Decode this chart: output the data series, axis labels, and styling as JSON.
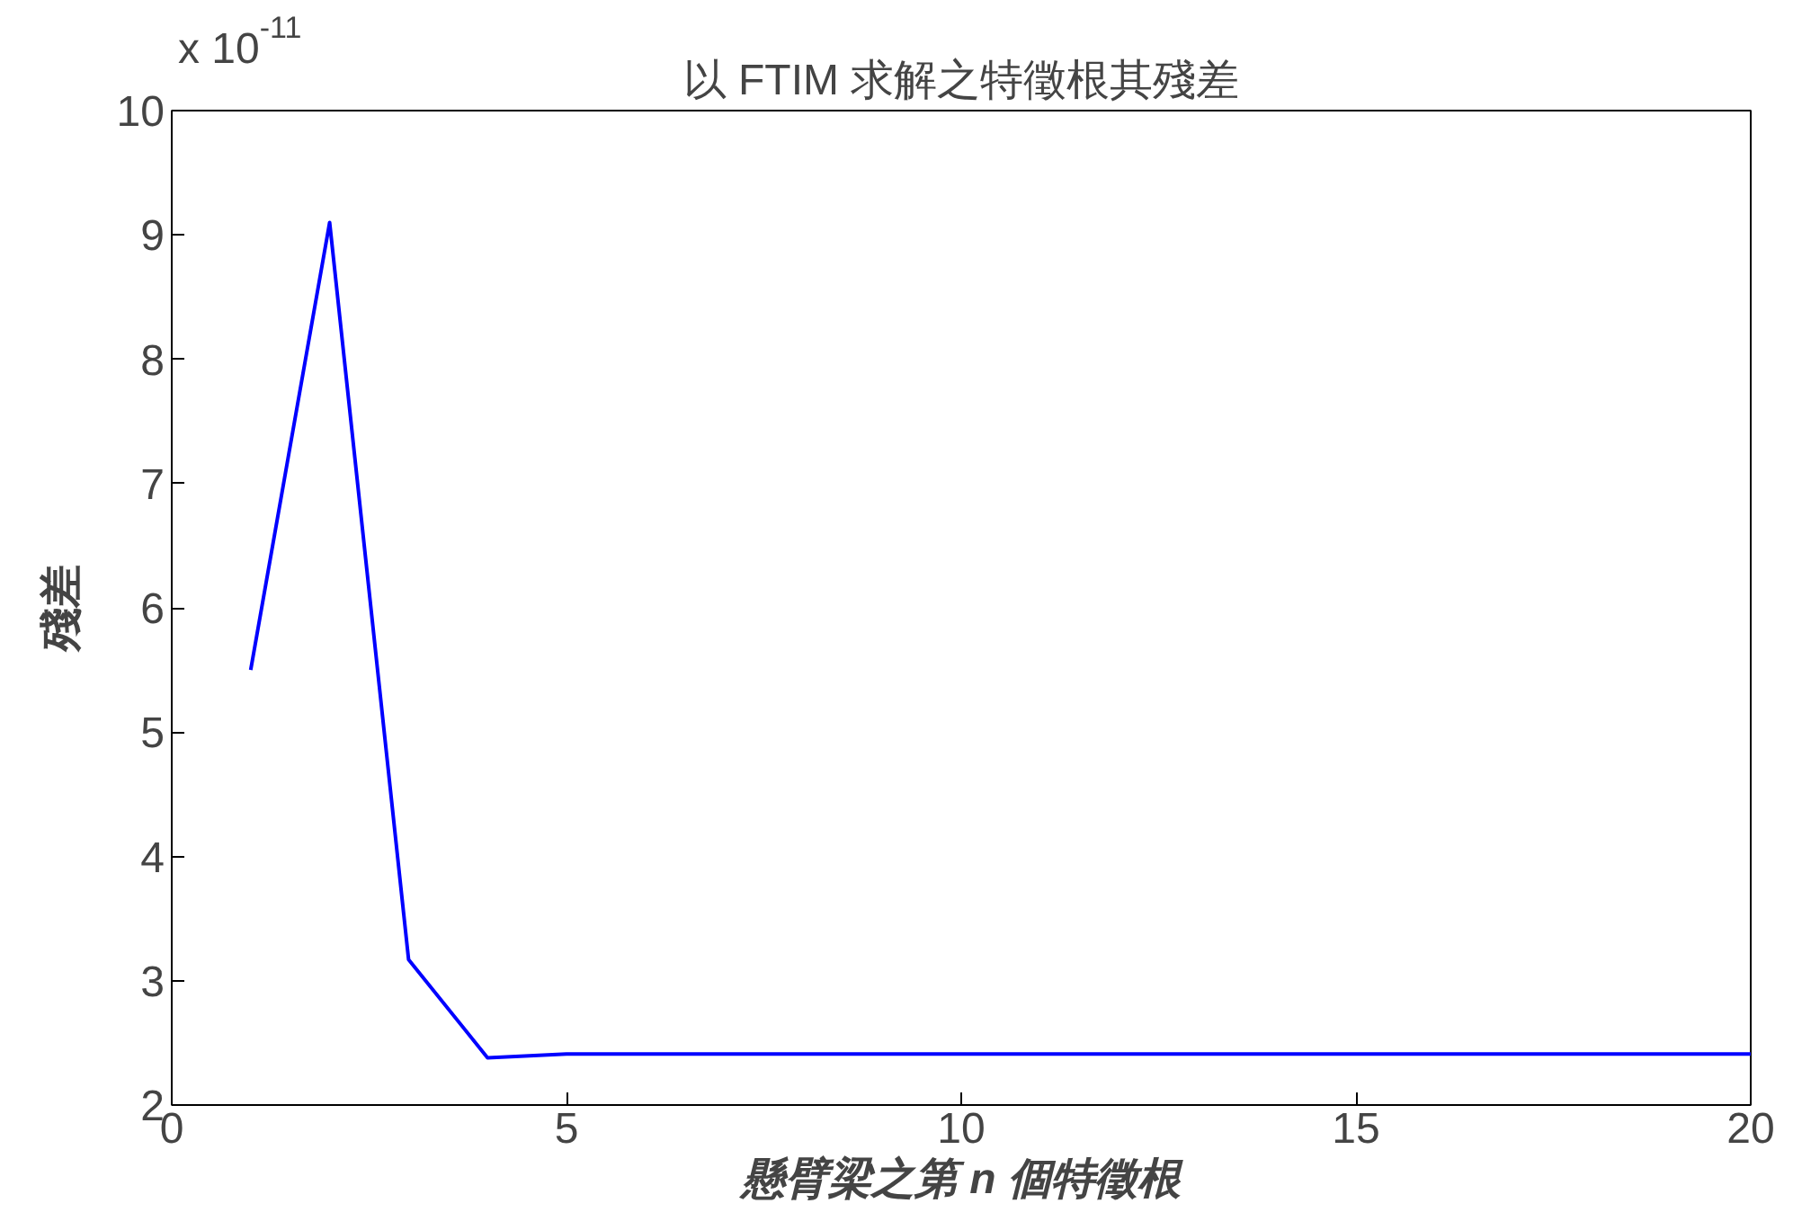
{
  "chart_data": {
    "type": "line",
    "title": "以 FTIM 求解之特徵根其殘差",
    "xlabel": "懸臂梁之第 n 個特徵根",
    "ylabel": "殘差",
    "annotations": [
      "x 10$^{-11}$"
    ],
    "x": [
      1,
      2,
      3,
      4,
      5,
      6,
      7,
      8,
      9,
      10,
      11,
      12,
      13,
      14,
      15,
      16,
      17,
      18,
      19,
      20
    ],
    "series": [
      {
        "color": "#0000ff",
        "values": [
          5.5,
          9.1,
          3.17,
          2.38,
          2.41,
          2.41,
          2.41,
          2.41,
          2.41,
          2.41,
          2.41,
          2.41,
          2.41,
          2.41,
          2.41,
          2.41,
          2.41,
          2.41,
          2.41,
          2.41
        ]
      }
    ],
    "xlim": [
      0,
      20
    ],
    "ylim": [
      2,
      10
    ],
    "xticks": [
      0,
      5,
      10,
      15,
      20
    ],
    "yticks": [
      2,
      3,
      4,
      5,
      6,
      7,
      8,
      9,
      10
    ],
    "grid": false,
    "marker": "none",
    "line_style": "solid"
  }
}
